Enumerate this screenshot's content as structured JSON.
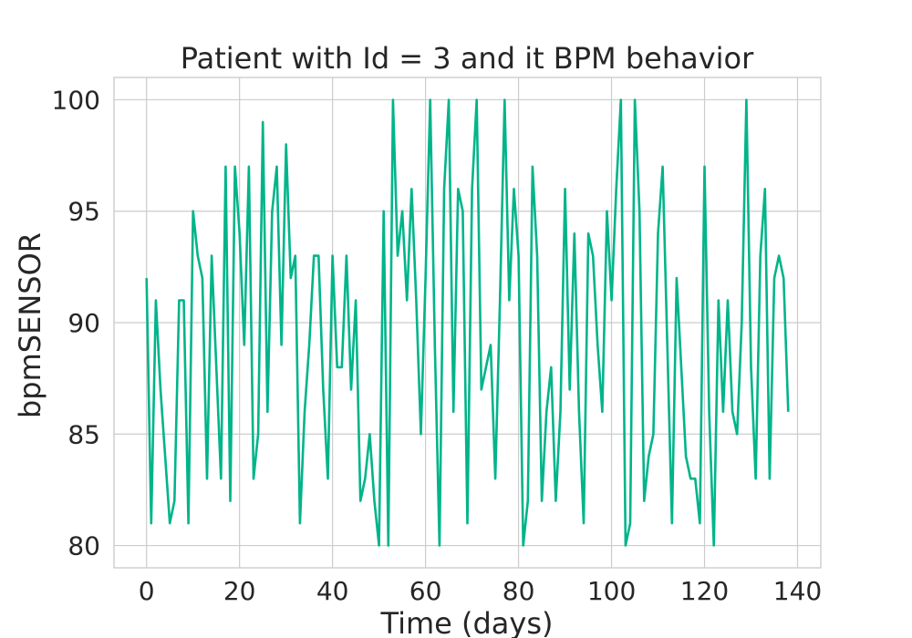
{
  "chart_data": {
    "type": "line",
    "title": "Patient with Id = 3 and it BPM behavior",
    "xlabel": "Time (days)",
    "ylabel": "bpmSENSOR",
    "xlim": [
      -7,
      145
    ],
    "ylim": [
      79,
      101
    ],
    "xticks": [
      0,
      20,
      40,
      60,
      80,
      100,
      120,
      140
    ],
    "yticks": [
      80,
      85,
      90,
      95,
      100
    ],
    "xtick_labels": [
      "0",
      "20",
      "40",
      "60",
      "80",
      "100",
      "120",
      "140"
    ],
    "ytick_labels": [
      "80",
      "85",
      "90",
      "95",
      "100"
    ],
    "grid": true,
    "line_color": "#00b48a",
    "series": [
      {
        "x": [
          0,
          1,
          2,
          3,
          4,
          5,
          6,
          7,
          8,
          9,
          10,
          11,
          12,
          13,
          14,
          15,
          16,
          17,
          18,
          19,
          20,
          21,
          22,
          23,
          24,
          25,
          26,
          27,
          28,
          29,
          30,
          31,
          32,
          33,
          34,
          35,
          36,
          37,
          38,
          39,
          40,
          41,
          42,
          43,
          44,
          45,
          46,
          47,
          48,
          49,
          50,
          51,
          52,
          53,
          54,
          55,
          56,
          57,
          58,
          59,
          60,
          61,
          62,
          63,
          64,
          65,
          66,
          67,
          68,
          69,
          70,
          71,
          72,
          73,
          74,
          75,
          76,
          77,
          78,
          79,
          80,
          81,
          82,
          83,
          84,
          85,
          86,
          87,
          88,
          89,
          90,
          91,
          92,
          93,
          94,
          95,
          96,
          97,
          98,
          99,
          100,
          101,
          102,
          103,
          104,
          105,
          106,
          107,
          108,
          109,
          110,
          111,
          112,
          113,
          114,
          115,
          116,
          117,
          118,
          119,
          120,
          121,
          122,
          123,
          124,
          125,
          126,
          127,
          128,
          129,
          130,
          131,
          132,
          133,
          134,
          135,
          136,
          137,
          138
        ],
        "y": [
          92,
          81,
          91,
          87,
          84,
          81,
          82,
          91,
          91,
          81,
          95,
          93,
          92,
          83,
          93,
          88,
          83,
          97,
          82,
          97,
          94,
          89,
          97,
          83,
          85,
          99,
          86,
          95,
          97,
          89,
          98,
          92,
          93,
          81,
          86,
          89,
          93,
          93,
          87,
          83,
          93,
          88,
          88,
          93,
          87,
          91,
          82,
          83,
          85,
          82,
          80,
          95,
          80,
          100,
          93,
          95,
          91,
          96,
          91,
          85,
          92,
          100,
          89,
          80,
          96,
          100,
          86,
          96,
          95,
          81,
          96,
          100,
          87,
          88,
          89,
          83,
          91,
          100,
          91,
          96,
          93,
          80,
          82,
          97,
          93,
          82,
          86,
          88,
          82,
          86,
          96,
          87,
          94,
          86,
          81,
          94,
          93,
          89,
          86,
          95,
          91,
          96,
          100,
          80,
          81,
          100,
          95,
          82,
          84,
          85,
          94,
          97,
          89,
          81,
          92,
          88,
          84,
          83,
          83,
          81,
          97,
          86,
          80,
          91,
          86,
          91,
          86,
          85,
          90,
          100,
          88,
          83,
          93,
          96,
          83,
          92,
          93,
          92,
          86
        ]
      }
    ]
  }
}
